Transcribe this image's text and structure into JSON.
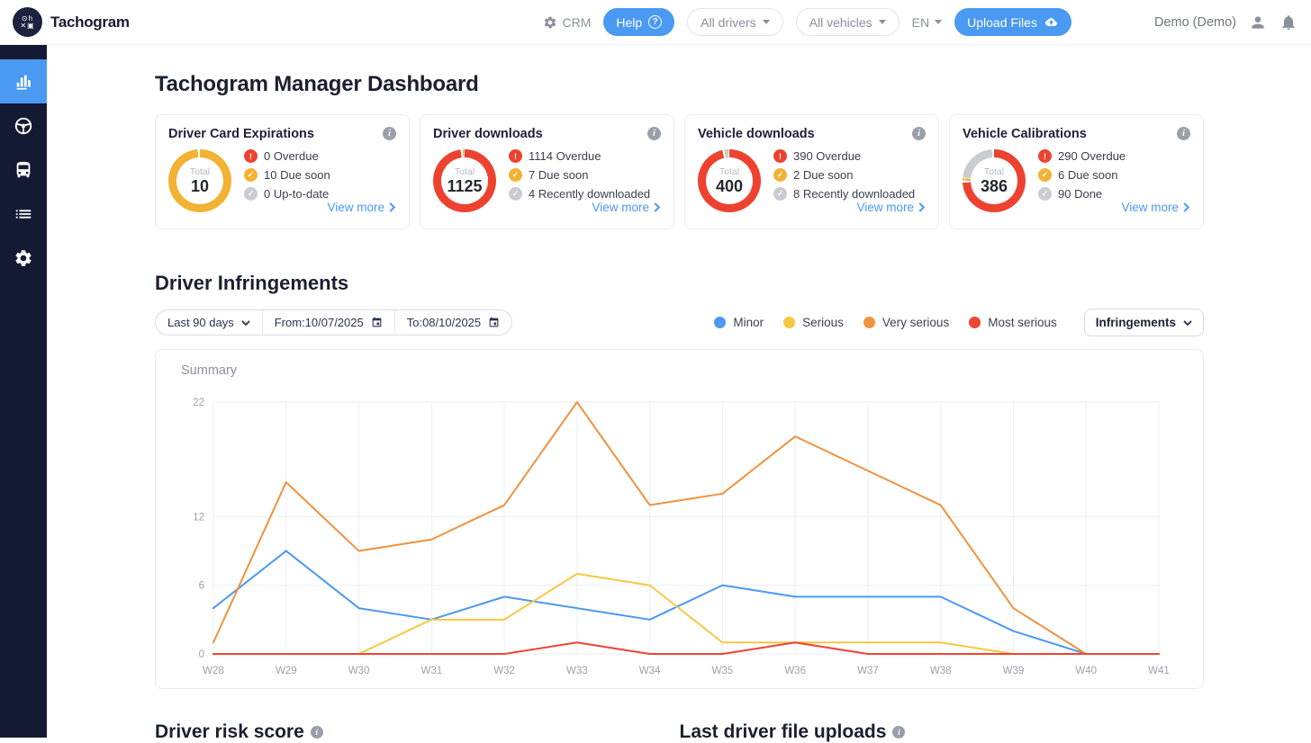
{
  "brand": {
    "name": "Tachogram"
  },
  "header": {
    "crm_label": "CRM",
    "help_label": "Help",
    "drivers_filter": "All drivers",
    "vehicles_filter": "All vehicles",
    "language": "EN",
    "upload_button": "Upload Files",
    "user": "Demo (Demo)"
  },
  "sidebar": {
    "items": [
      {
        "icon": "bar-chart-icon",
        "active": true
      },
      {
        "icon": "steering-wheel-icon",
        "active": false
      },
      {
        "icon": "bus-icon",
        "active": false
      },
      {
        "icon": "list-icon",
        "active": false
      },
      {
        "icon": "gear-icon",
        "active": false
      }
    ]
  },
  "page": {
    "title": "Tachogram Manager Dashboard"
  },
  "cards": [
    {
      "title": "Driver Card Expirations",
      "total_label": "Total",
      "total": "10",
      "rows": [
        {
          "text": "0 Overdue",
          "value": 0,
          "color": "#ee4230",
          "icon": "alert-circle-icon"
        },
        {
          "text": "10 Due soon",
          "value": 10,
          "color": "#f2b234",
          "icon": "check-circle-icon"
        },
        {
          "text": "0 Up-to-date",
          "value": 0,
          "color": "#c9ccd1",
          "icon": "check-circle-icon"
        }
      ],
      "view_more": "View more"
    },
    {
      "title": "Driver downloads",
      "total_label": "Total",
      "total": "1125",
      "rows": [
        {
          "text": "1114 Overdue",
          "value": 1114,
          "color": "#ee4230",
          "icon": "alert-circle-icon"
        },
        {
          "text": "7 Due soon",
          "value": 7,
          "color": "#f2b234",
          "icon": "check-circle-icon"
        },
        {
          "text": "4 Recently downloaded",
          "value": 4,
          "color": "#c9ccd1",
          "icon": "check-circle-icon"
        }
      ],
      "view_more": "View more"
    },
    {
      "title": "Vehicle downloads",
      "total_label": "Total",
      "total": "400",
      "rows": [
        {
          "text": "390 Overdue",
          "value": 390,
          "color": "#ee4230",
          "icon": "alert-circle-icon"
        },
        {
          "text": "2 Due soon",
          "value": 2,
          "color": "#f2b234",
          "icon": "check-circle-icon"
        },
        {
          "text": "8 Recently downloaded",
          "value": 8,
          "color": "#c9ccd1",
          "icon": "check-circle-icon"
        }
      ],
      "view_more": "View more"
    },
    {
      "title": "Vehicle Calibrations",
      "total_label": "Total",
      "total": "386",
      "rows": [
        {
          "text": "290 Overdue",
          "value": 290,
          "color": "#ee4230",
          "icon": "alert-circle-icon"
        },
        {
          "text": "6 Due soon",
          "value": 6,
          "color": "#f2b234",
          "icon": "check-circle-icon"
        },
        {
          "text": "90 Done",
          "value": 90,
          "color": "#c9ccd1",
          "icon": "check-circle-icon"
        }
      ],
      "view_more": "View more"
    }
  ],
  "infringements": {
    "title": "Driver Infringements",
    "range_select": "Last 90 days",
    "date_from": "From:10/07/2025",
    "date_to": "To:08/10/2025",
    "type_select": "Infringements"
  },
  "chart_data": {
    "type": "line",
    "title": "Summary",
    "x": [
      "W28",
      "W29",
      "W30",
      "W31",
      "W32",
      "W33",
      "W34",
      "W35",
      "W36",
      "W37",
      "W38",
      "W39",
      "W40",
      "W41"
    ],
    "series": [
      {
        "name": "Minor",
        "color": "#4a99f2",
        "values": [
          4,
          9,
          4,
          3,
          5,
          4,
          3,
          6,
          5,
          5,
          5,
          2,
          0,
          0
        ]
      },
      {
        "name": "Serious",
        "color": "#f6c843",
        "values": [
          0,
          0,
          0,
          3,
          3,
          7,
          6,
          1,
          1,
          1,
          1,
          0,
          0,
          0
        ]
      },
      {
        "name": "Very serious",
        "color": "#f0923f",
        "values": [
          1,
          15,
          9,
          10,
          13,
          22,
          13,
          14,
          19,
          16,
          13,
          4,
          0,
          0
        ]
      },
      {
        "name": "Most serious",
        "color": "#ee4433",
        "values": [
          0,
          0,
          0,
          0,
          0,
          1,
          0,
          0,
          1,
          0,
          0,
          0,
          0,
          0
        ]
      }
    ],
    "yticks": [
      0,
      6,
      12,
      22
    ],
    "ylim": [
      0,
      22
    ],
    "grid": true,
    "legend_position": "top-right-above-panel"
  },
  "bottom": {
    "risk_title": "Driver risk score",
    "uploads_title": "Last driver file uploads"
  }
}
